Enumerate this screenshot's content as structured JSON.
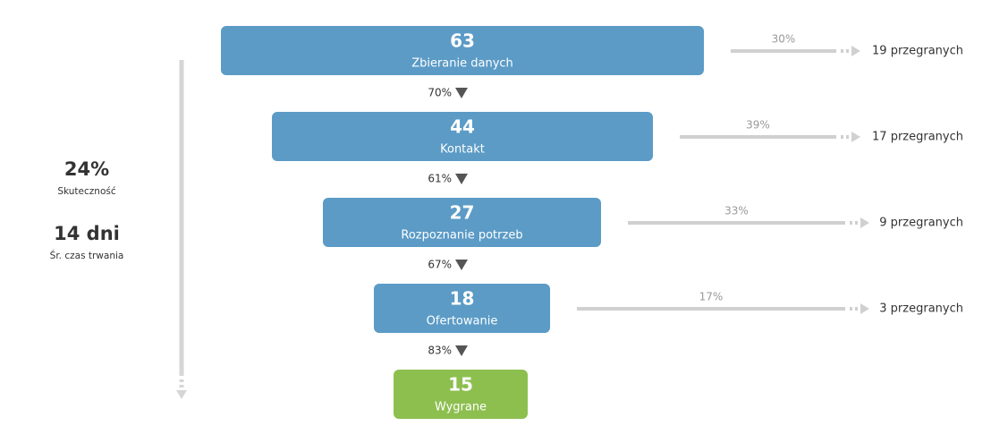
{
  "summary": {
    "rate": "24%",
    "rate_label": "Skuteczność",
    "duration": "14 dni",
    "duration_label": "Śr. czas trwania"
  },
  "stages": [
    {
      "count": 63,
      "name": "Zbieranie danych",
      "lost_pct": "30%",
      "lost": "19 przegranych",
      "conversion": "70%"
    },
    {
      "count": 44,
      "name": "Kontakt",
      "lost_pct": "39%",
      "lost": "17 przegranych",
      "conversion": "61%"
    },
    {
      "count": 27,
      "name": "Rozpoznanie potrzeb",
      "lost_pct": "33%",
      "lost": "9 przegranych",
      "conversion": "67%"
    },
    {
      "count": 18,
      "name": "Ofertowanie",
      "lost_pct": "17%",
      "lost": "3 przegranych",
      "conversion": "83%"
    }
  ],
  "won": {
    "count": 15,
    "name": "Wygrane"
  }
}
